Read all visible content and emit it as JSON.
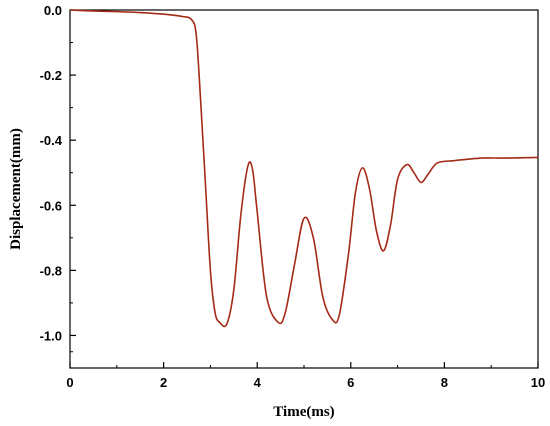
{
  "chart_data": {
    "type": "line",
    "title": "",
    "xlabel": "Time(ms)",
    "ylabel": "Displacement(mm)",
    "xlim": [
      0,
      10
    ],
    "ylim": [
      -1.1,
      0
    ],
    "x_ticks": [
      0,
      2,
      4,
      6,
      8,
      10
    ],
    "x_tick_labels": [
      "0",
      "2",
      "4",
      "6",
      "8",
      "10"
    ],
    "y_ticks": [
      0,
      -0.2,
      -0.4,
      -0.6,
      -0.8,
      -1.0
    ],
    "y_tick_labels": [
      "0.0",
      "-0.2",
      "-0.4",
      "-0.6",
      "-0.8",
      "-1.0"
    ],
    "grid": false,
    "series": [
      {
        "name": "",
        "color": "#a52a15",
        "x": [
          0,
          0.5,
          1.0,
          1.5,
          2.0,
          2.4,
          2.6,
          2.7,
          2.8,
          2.9,
          3.0,
          3.1,
          3.2,
          3.35,
          3.5,
          3.65,
          3.8,
          3.9,
          4.0,
          4.2,
          4.45,
          4.6,
          4.8,
          5.0,
          5.2,
          5.4,
          5.6,
          5.75,
          5.95,
          6.1,
          6.25,
          6.4,
          6.55,
          6.7,
          6.85,
          7.0,
          7.2,
          7.35,
          7.5,
          7.65,
          7.85,
          8.2,
          8.8,
          9.3,
          10.0
        ],
        "y": [
          0.0,
          -0.003,
          -0.005,
          -0.008,
          -0.013,
          -0.02,
          -0.03,
          -0.08,
          -0.3,
          -0.55,
          -0.8,
          -0.93,
          -0.96,
          -0.965,
          -0.86,
          -0.63,
          -0.48,
          -0.49,
          -0.62,
          -0.88,
          -0.96,
          -0.93,
          -0.78,
          -0.64,
          -0.7,
          -0.88,
          -0.95,
          -0.94,
          -0.75,
          -0.56,
          -0.485,
          -0.55,
          -0.68,
          -0.74,
          -0.66,
          -0.52,
          -0.475,
          -0.5,
          -0.53,
          -0.505,
          -0.47,
          -0.463,
          -0.455,
          -0.455,
          -0.453
        ]
      }
    ]
  }
}
